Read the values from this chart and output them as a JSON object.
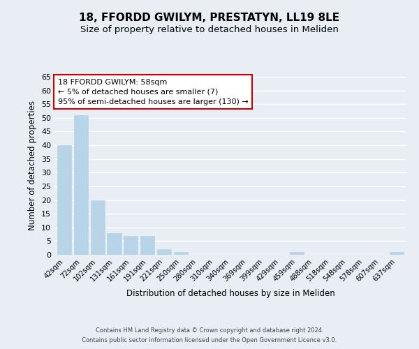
{
  "title": "18, FFORDD GWILYM, PRESTATYN, LL19 8LE",
  "subtitle": "Size of property relative to detached houses in Meliden",
  "xlabel": "Distribution of detached houses by size in Meliden",
  "ylabel": "Number of detached properties",
  "bar_labels": [
    "42sqm",
    "72sqm",
    "102sqm",
    "131sqm",
    "161sqm",
    "191sqm",
    "221sqm",
    "250sqm",
    "280sqm",
    "310sqm",
    "340sqm",
    "369sqm",
    "399sqm",
    "429sqm",
    "459sqm",
    "488sqm",
    "518sqm",
    "548sqm",
    "578sqm",
    "607sqm",
    "637sqm"
  ],
  "bar_values": [
    40,
    51,
    20,
    8,
    7,
    7,
    2,
    1,
    0,
    0,
    0,
    0,
    0,
    0,
    1,
    0,
    0,
    0,
    0,
    0,
    1
  ],
  "bar_color": "#b8d4e8",
  "ylim": [
    0,
    65
  ],
  "yticks": [
    0,
    5,
    10,
    15,
    20,
    25,
    30,
    35,
    40,
    45,
    50,
    55,
    60,
    65
  ],
  "annotation_title": "18 FFORDD GWILYM: 58sqm",
  "annotation_line1": "← 5% of detached houses are smaller (7)",
  "annotation_line2": "95% of semi-detached houses are larger (130) →",
  "annotation_box_facecolor": "#ffffff",
  "annotation_box_edgecolor": "#cc0000",
  "footer_line1": "Contains HM Land Registry data © Crown copyright and database right 2024.",
  "footer_line2": "Contains public sector information licensed under the Open Government Licence v3.0.",
  "background_color": "#e8eef4",
  "plot_background": "#e8eef4",
  "grid_color": "#ffffff",
  "title_fontsize": 11,
  "subtitle_fontsize": 9.5
}
